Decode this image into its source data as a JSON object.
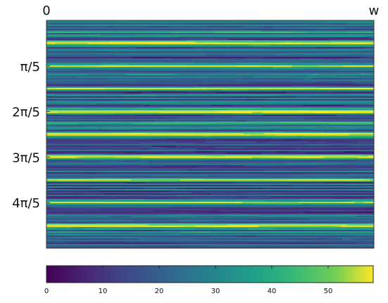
{
  "chart_data": {
    "type": "heatmap",
    "colormap": "viridis",
    "x_tick_labels": [
      "0",
      "w"
    ],
    "y_tick_labels": [
      "π/5",
      "2π/5",
      "3π/5",
      "4π/5"
    ],
    "colorbar": {
      "range": [
        0,
        58
      ],
      "tick_labels": [
        "0",
        "10",
        "20",
        "30",
        "40",
        "50"
      ]
    },
    "bright_band_rows_y": [
      "0.1π",
      "0.2π",
      "0.3π",
      "0.4π",
      "0.5π",
      "0.6π",
      "0.7π",
      "0.8π",
      "0.9π"
    ],
    "band_peak_value": 56,
    "background_value_range": [
      8,
      34
    ],
    "grid": false,
    "legend": "none"
  }
}
